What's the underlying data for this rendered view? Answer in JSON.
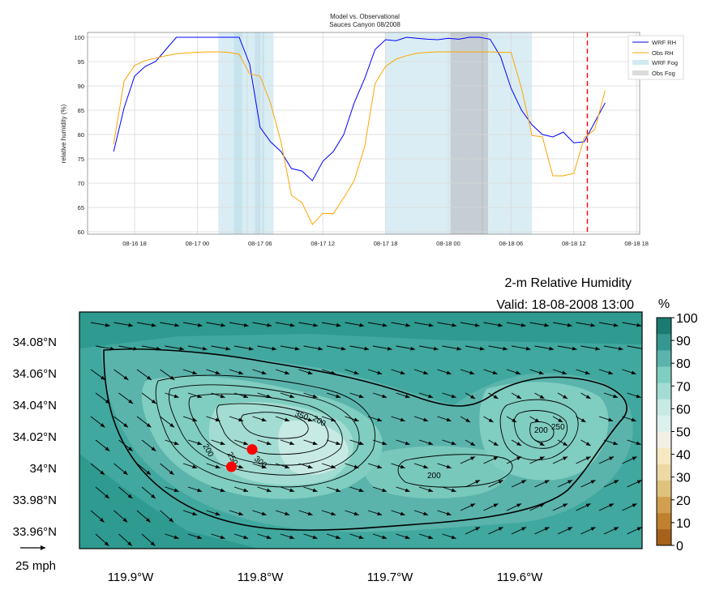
{
  "chart_data": [
    {
      "type": "line",
      "title": "Model vs. Observational",
      "subtitle": "Sauces Canyon 08/2008",
      "ylabel": "relative humidity (%)",
      "xlabel": "",
      "ylim": [
        59.5,
        101
      ],
      "yticks": [
        60,
        65,
        70,
        75,
        80,
        85,
        90,
        95,
        100
      ],
      "xticks": [
        "08-16 18",
        "08-17 00",
        "08-17 06",
        "08-17 12",
        "08-17 18",
        "08-18 00",
        "08-18 06",
        "08-18 12",
        "08-18 18"
      ],
      "x_unit": "hours after 08-16 00",
      "xlim": [
        13.5,
        66.3
      ],
      "grid": true,
      "legend_position": "top-right",
      "series": [
        {
          "name": "WRF RH",
          "color": "#0000ff",
          "x": [
            16,
            17,
            18,
            19,
            20,
            21,
            22,
            23,
            24,
            25,
            26,
            27,
            28,
            29,
            30,
            31,
            32,
            33,
            34,
            35,
            36,
            37,
            38,
            39,
            40,
            41,
            42,
            43,
            44,
            45,
            46,
            47,
            48,
            49,
            50,
            51,
            52,
            53,
            54,
            55,
            56,
            57,
            58,
            59,
            60,
            61,
            62,
            63,
            64
          ],
          "values": [
            76.5,
            85.5,
            92,
            94,
            95,
            97.5,
            100,
            100,
            100,
            100,
            100,
            100,
            100,
            94.5,
            81.5,
            78.5,
            76.5,
            73,
            72.5,
            70.5,
            74.5,
            76.5,
            80,
            86.5,
            91.5,
            97.5,
            99.5,
            99.3,
            100,
            99.8,
            99.6,
            99.5,
            99.8,
            99.6,
            100,
            100,
            99.6,
            96,
            89.5,
            85,
            82,
            80,
            79.5,
            80.5,
            78.3,
            78.5,
            82.5,
            86.5,
            null
          ]
        },
        {
          "name": "Obs RH",
          "color": "#ffa500",
          "x": [
            16,
            17,
            18,
            19,
            20,
            21,
            22,
            23,
            24,
            25,
            26,
            27,
            28,
            29,
            30,
            31,
            32,
            33,
            34,
            35,
            36,
            37,
            38,
            39,
            40,
            41,
            42,
            43,
            44,
            45,
            46,
            47,
            48,
            49,
            50,
            51,
            52,
            53,
            54,
            55,
            56,
            57,
            58,
            59,
            60,
            61,
            62,
            63,
            64
          ],
          "values": [
            78,
            91,
            94.2,
            95.2,
            95.7,
            96.2,
            96.6,
            96.8,
            96.9,
            97,
            97,
            96.9,
            96.5,
            92.5,
            92,
            86.5,
            78.5,
            67.5,
            66,
            61.5,
            63.8,
            63.7,
            67,
            70.5,
            77.5,
            90.5,
            94,
            95.5,
            96.2,
            96.7,
            96.9,
            97,
            97,
            97,
            97,
            97,
            97,
            96.9,
            96.9,
            89.5,
            79.8,
            79.5,
            71.5,
            71.5,
            72,
            79.3,
            81,
            89,
            null
          ]
        }
      ],
      "shaded_regions": [
        {
          "name": "WRF Fog",
          "color": "#add8e6",
          "spans": [
            [
              26,
              27
            ],
            [
              27,
              28
            ],
            [
              27.5,
              28.3
            ],
            [
              28,
              28.8
            ],
            [
              28.7,
              29
            ],
            [
              29,
              30
            ],
            [
              29.5,
              30.4
            ],
            [
              30.2,
              31.3
            ],
            [
              42,
              43
            ],
            [
              43,
              44
            ],
            [
              44,
              45
            ],
            [
              45,
              46
            ],
            [
              46,
              47
            ],
            [
              47,
              48
            ],
            [
              48,
              49
            ],
            [
              49,
              50
            ],
            [
              50,
              51
            ],
            [
              51,
              52
            ],
            [
              52,
              53
            ],
            [
              53,
              54
            ],
            [
              54,
              55
            ],
            [
              55,
              56
            ]
          ]
        },
        {
          "name": "Obs Fog",
          "color": "#b0b0b0",
          "spans": [
            [
              48.2,
              49.1
            ],
            [
              49.1,
              50
            ],
            [
              50,
              50.7
            ],
            [
              50.7,
              51.3
            ],
            [
              51.2,
              51.8
            ]
          ]
        }
      ],
      "vertical_marker": {
        "x": 61.3,
        "color": "#ff0000",
        "style": "dashed"
      }
    },
    {
      "type": "heatmap",
      "title": "2-m Relative Humidity",
      "subtitle": "Valid: 18-08-2008 13:00",
      "colorbar_label": "%",
      "colorbar_ticks": [
        "0",
        "10",
        "20",
        "30",
        "40",
        "50",
        "60",
        "70",
        "80",
        "90",
        "100"
      ],
      "colorbar_colors": [
        "#a6611a",
        "#bf812d",
        "#d0a050",
        "#dfc27d",
        "#ecd9a6",
        "#f6e8c3",
        "#f2f0e4",
        "#dcf0ed",
        "#c7eae5",
        "#a2dcd2",
        "#80cdc1",
        "#5ab4ac",
        "#35978f",
        "#1b7a72"
      ],
      "lon_ticks": [
        "119.9°W",
        "119.8°W",
        "119.7°W",
        "119.6°W"
      ],
      "lat_ticks": [
        "34.08°N",
        "34.06°N",
        "34.04°N",
        "34.02°N",
        "34°N",
        "33.98°N",
        "33.96°N"
      ],
      "contour_labels": [
        "200",
        "250",
        "300",
        "350",
        "200",
        "200",
        "250",
        "200",
        "300"
      ],
      "wind_scale_label": "25 mph",
      "stations": [
        {
          "lon": -119.82,
          "lat": 34.012
        },
        {
          "lon": -119.836,
          "lat": 34.001
        }
      ]
    }
  ]
}
